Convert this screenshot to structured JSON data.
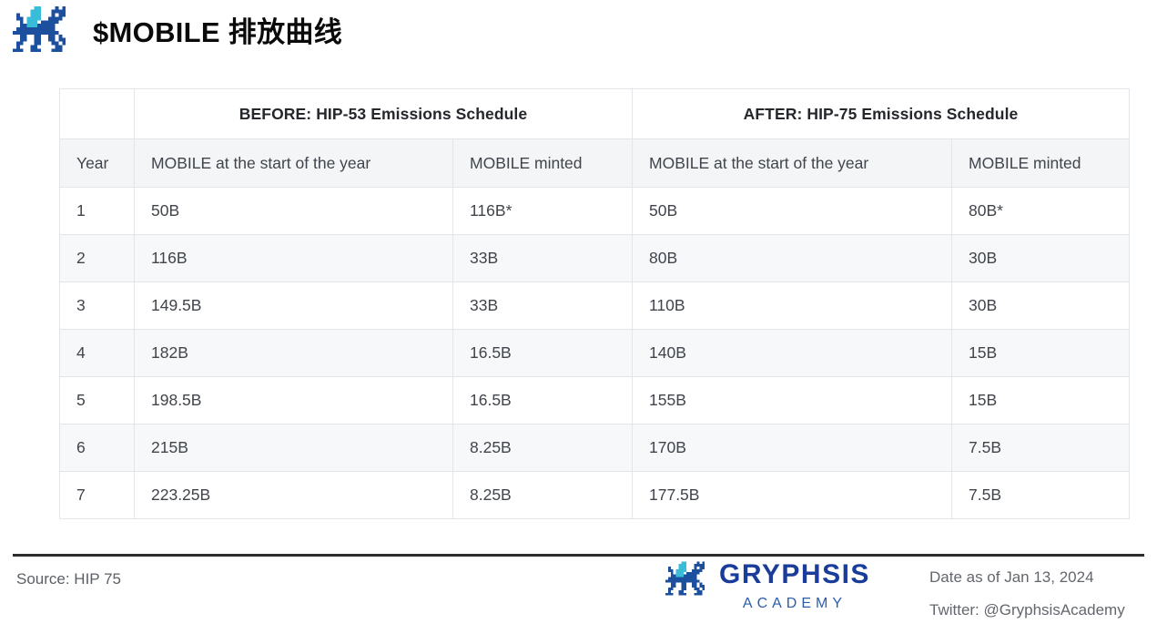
{
  "header": {
    "title": "$MOBILE 排放曲线",
    "logo_icon": "gryphsis-dragon-pixel-icon"
  },
  "chart_data": {
    "type": "table",
    "title": "$MOBILE 排放曲线",
    "group_headers": [
      "BEFORE: HIP-53 Emissions Schedule",
      "AFTER: HIP-75 Emissions Schedule"
    ],
    "columns": [
      "Year",
      "MOBILE at the start of the year",
      "MOBILE minted",
      "MOBILE at the start of the year",
      "MOBILE minted"
    ],
    "rows": [
      [
        "1",
        "50B",
        "116B*",
        "50B",
        "80B*"
      ],
      [
        "2",
        "116B",
        "33B",
        "80B",
        "30B"
      ],
      [
        "3",
        "149.5B",
        "33B",
        "110B",
        "30B"
      ],
      [
        "4",
        "182B",
        "16.5B",
        "140B",
        "15B"
      ],
      [
        "5",
        "198.5B",
        "16.5B",
        "155B",
        "15B"
      ],
      [
        "6",
        "215B",
        "8.25B",
        "170B",
        "7.5B"
      ],
      [
        "7",
        "223.25B",
        "8.25B",
        "177.5B",
        "7.5B"
      ]
    ],
    "layout_hints": {
      "row_striping": "even rows light gray",
      "grid": "full light-gray cell borders"
    }
  },
  "footer": {
    "source": "Source: HIP 75",
    "brand_name": "GRYPHSIS",
    "brand_sub": "ACADEMY",
    "date": "Date as of Jan 13, 2024",
    "twitter": "Twitter: @GryphsisAcademy",
    "logo_icon": "gryphsis-dragon-pixel-icon"
  },
  "colors": {
    "brand_blue": "#1d4f9f",
    "brand_cyan": "#39bcd8",
    "brand_text_blue": "#1a3d9c",
    "header_row_gray": "#f3f5f7",
    "stripe_gray": "#f6f8f9",
    "cell_border": "#e2e5e9",
    "text_dark": "#40444b",
    "rule_dark": "#2d2d2d",
    "footer_text_gray": "#5c6066"
  }
}
